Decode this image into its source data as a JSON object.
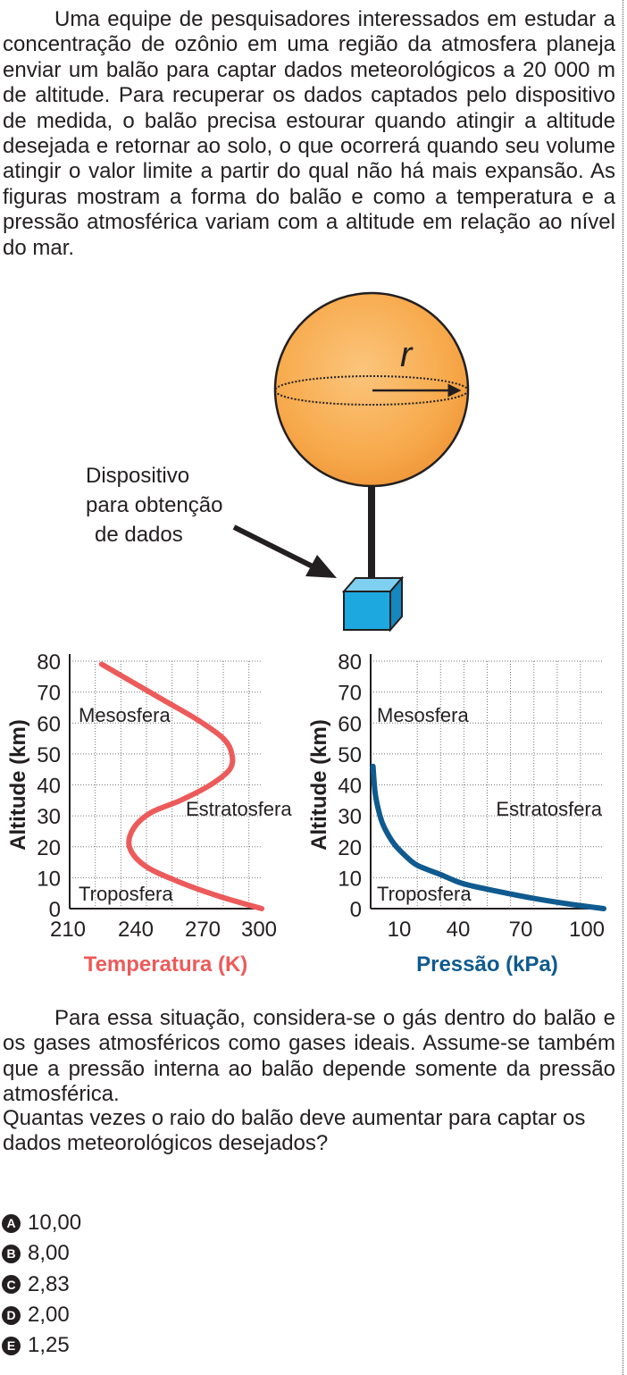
{
  "intro": "Uma equipe de pesquisadores interessados em estudar a concentração de ozônio em uma região da atmosfera planeja enviar um balão para captar dados meteorológicos a 20 000 m de altitude. Para recuperar os dados captados pelo dispositivo de medida, o balão precisa estourar quando atingir a altitude desejada e retornar ao solo, o que ocorrerá quando seu volume atingir o valor limite a partir do qual não há mais expansão. As figuras mostram a forma do balão e como a temperatura e a pressão atmosférica variam com a altitude em relação ao nível do mar.",
  "figure": {
    "radius_label": "r",
    "device_label_1": "Dispositivo",
    "device_label_2": "para obtenção",
    "device_label_3": "de dados",
    "colors": {
      "balloon": "#f7a94b",
      "device": "#1da8e0",
      "temperature": "#ec5b5a",
      "pressure": "#0f5a8f"
    }
  },
  "chart_data": [
    {
      "type": "line",
      "xlabel": "Temperatura (K)",
      "ylabel": "Altitude (km)",
      "xlim": [
        210,
        300
      ],
      "ylim": [
        0,
        80
      ],
      "x_ticks": [
        "210",
        "240",
        "270",
        "300"
      ],
      "y_ticks": [
        "0",
        "10",
        "20",
        "30",
        "40",
        "50",
        "60",
        "70",
        "80"
      ],
      "grid": true,
      "layer_labels": [
        "Mesosfera",
        "Estratosfera",
        "Troposfera"
      ],
      "series": [
        {
          "x": [
            300,
            280,
            260,
            245,
            238,
            240,
            248,
            262,
            276,
            285,
            286,
            282,
            270,
            255,
            240,
            225
          ],
          "y": [
            0,
            4,
            9,
            14,
            20,
            26,
            31,
            35,
            40,
            45,
            50,
            55,
            61,
            67,
            73,
            79
          ]
        }
      ]
    },
    {
      "type": "line",
      "xlabel": "Pressão (kPa)",
      "ylabel": "Altitude (km)",
      "xlim": [
        0,
        100
      ],
      "ylim": [
        0,
        80
      ],
      "x_ticks": [
        "10",
        "40",
        "70",
        "100"
      ],
      "y_ticks": [
        "0",
        "10",
        "20",
        "30",
        "40",
        "50",
        "60",
        "70",
        "80"
      ],
      "grid": true,
      "layer_labels": [
        "Mesosfera",
        "Estratosfera",
        "Troposfera"
      ],
      "series": [
        {
          "x": [
            1,
            2,
            4,
            6,
            10,
            15,
            20,
            30,
            40,
            55,
            70,
            85,
            100
          ],
          "y": [
            46,
            37,
            30,
            26,
            21,
            17,
            14,
            11,
            8,
            5.5,
            3.3,
            1.5,
            0
          ]
        }
      ]
    }
  ],
  "after": "Para essa situação, considera-se o gás dentro do balão e os gases atmosféricos como gases ideais. Assume-se também que a pressão interna ao balão depende somente da pressão atmosférica.",
  "question": "Quantas vezes o raio do balão deve aumentar para captar os dados meteorológicos desejados?",
  "options": [
    {
      "letter": "A",
      "text": "10,00"
    },
    {
      "letter": "B",
      "text": "8,00"
    },
    {
      "letter": "C",
      "text": "2,83"
    },
    {
      "letter": "D",
      "text": "2,00"
    },
    {
      "letter": "E",
      "text": "1,25"
    }
  ]
}
